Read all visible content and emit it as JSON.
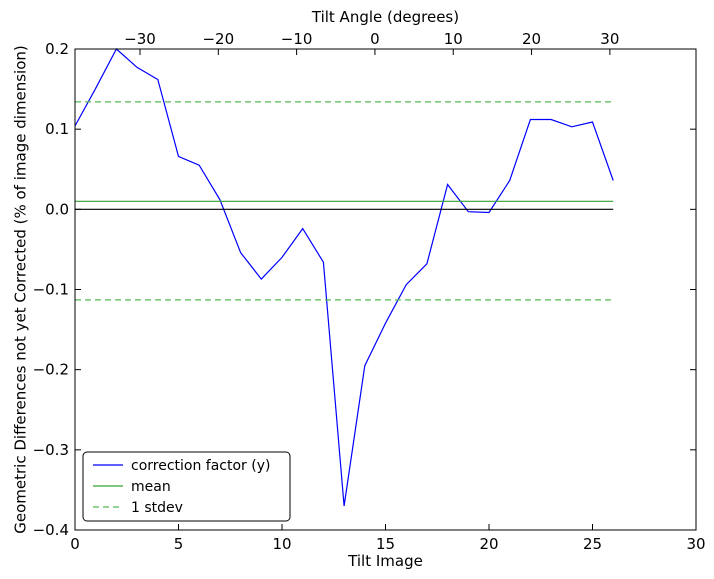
{
  "chart_data": {
    "type": "line",
    "xlabel": "Tilt Image",
    "ylabel": "Geometric Differences not yet Corrected (% of image dimension)",
    "top_xlabel": "Tilt Angle (degrees)",
    "xlim": [
      0,
      30
    ],
    "ylim": [
      -0.4,
      0.2
    ],
    "top_xlim": [
      -38.3,
      41.0
    ],
    "x_ticks": [
      0,
      5,
      10,
      15,
      20,
      25,
      30
    ],
    "x_tick_labels": [
      "0",
      "5",
      "10",
      "15",
      "20",
      "25",
      "30"
    ],
    "y_ticks": [
      0.2,
      0.1,
      0.0,
      -0.1,
      -0.2,
      -0.3,
      -0.4
    ],
    "y_tick_labels": [
      "0.2",
      "0.1",
      "0.0",
      "−0.1",
      "−0.2",
      "−0.3",
      "−0.4"
    ],
    "top_ticks": [
      -30,
      -20,
      -10,
      0,
      10,
      20,
      30
    ],
    "top_tick_labels": [
      "−30",
      "−20",
      "−10",
      "0",
      "10",
      "20",
      "30"
    ],
    "grid": false,
    "legend_position": "bottom-left",
    "series": [
      {
        "name": "correction factor (y)",
        "color": "#0000ff",
        "style": "solid",
        "x": [
          0,
          1,
          2,
          3,
          4,
          5,
          6,
          7,
          8,
          9,
          10,
          11,
          12,
          13,
          14,
          15,
          16,
          17,
          18,
          19,
          20,
          21,
          22,
          23,
          24,
          25,
          26
        ],
        "y": [
          0.104,
          0.151,
          0.2,
          0.177,
          0.162,
          0.066,
          0.055,
          0.012,
          -0.054,
          -0.087,
          -0.06,
          -0.024,
          -0.066,
          -0.37,
          -0.195,
          -0.142,
          -0.094,
          -0.068,
          0.031,
          -0.003,
          -0.004,
          0.036,
          0.112,
          0.112,
          0.103,
          0.109,
          0.036
        ]
      },
      {
        "name": "mean",
        "color": "#33a033",
        "style": "solid",
        "x": [
          0,
          26
        ],
        "y": [
          0.01,
          0.01
        ]
      },
      {
        "name": "1 stdev",
        "color": "#55bb55",
        "style": "dashed",
        "x": [
          0,
          26
        ],
        "y": [
          0.134,
          0.134
        ]
      },
      {
        "name": "",
        "color": "#55bb55",
        "style": "dashed",
        "x": [
          0,
          26
        ],
        "y": [
          -0.113,
          -0.113
        ]
      },
      {
        "name": "",
        "color": "#000000",
        "style": "solid",
        "x": [
          0,
          26
        ],
        "y": [
          0.0,
          0.0
        ]
      }
    ],
    "legend": [
      {
        "label": "correction factor (y)",
        "color": "#0000ff",
        "style": "solid"
      },
      {
        "label": "mean",
        "color": "#33a033",
        "style": "solid"
      },
      {
        "label": "1 stdev",
        "color": "#55bb55",
        "style": "dashed"
      }
    ]
  }
}
